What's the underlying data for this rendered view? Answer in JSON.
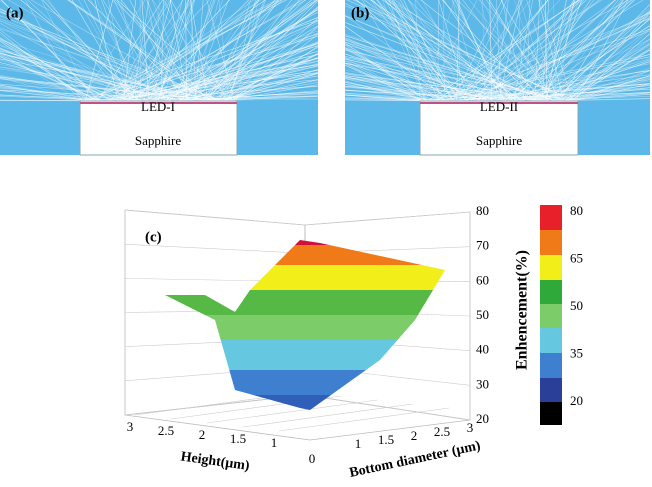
{
  "panels": [
    {
      "label": "(a)",
      "device": "LED-I",
      "substrate": "Sapphire"
    },
    {
      "label": "(b)",
      "device": "LED-II",
      "substrate": "Sapphire"
    }
  ],
  "plot": {
    "label": "(c)",
    "z_ticks": [
      "80",
      "70",
      "60",
      "50",
      "40",
      "30",
      "20"
    ],
    "height_ticks": [
      "3",
      "2.5",
      "2",
      "1.5",
      "1"
    ],
    "diameter_ticks": [
      "0",
      "1",
      "1.5",
      "2",
      "2.5",
      "3"
    ],
    "height_title": "Height(μm)",
    "diameter_title": "Bottom diameter (μm)",
    "colorbar_title": "Enhencement(%)",
    "colorbar_ticks": [
      "80",
      "65",
      "50",
      "35",
      "20"
    ]
  }
}
